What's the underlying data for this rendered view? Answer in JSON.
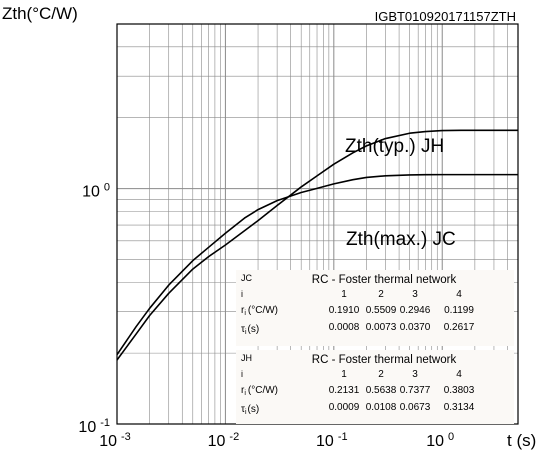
{
  "chart_data": {
    "type": "line",
    "title": "",
    "id_label": "IGBT010920171157ZTH",
    "ylabel": "Zth(°C/W)",
    "xlabel": "t (s)",
    "x_scale": "log",
    "y_scale": "log",
    "xlim": [
      0.001,
      5
    ],
    "ylim": [
      0.1,
      5
    ],
    "grid": true,
    "x_ticks": [
      {
        "base": "10",
        "exp": "-3"
      },
      {
        "base": "10",
        "exp": "-2"
      },
      {
        "base": "10",
        "exp": "-1"
      },
      {
        "base": "10",
        "exp": "0"
      }
    ],
    "y_ticks": [
      {
        "base": "10",
        "exp": "0"
      },
      {
        "base": "10",
        "exp": "-1"
      }
    ],
    "series": [
      {
        "name": "Zth(typ.) JH",
        "x": [
          0.001,
          0.0015,
          0.002,
          0.003,
          0.005,
          0.007,
          0.01,
          0.015,
          0.02,
          0.03,
          0.05,
          0.07,
          0.1,
          0.15,
          0.2,
          0.3,
          0.5,
          0.7,
          1,
          1.5,
          2,
          3,
          5
        ],
        "y": [
          0.187,
          0.241,
          0.289,
          0.359,
          0.455,
          0.514,
          0.576,
          0.662,
          0.731,
          0.847,
          1.016,
          1.132,
          1.269,
          1.419,
          1.518,
          1.631,
          1.718,
          1.747,
          1.763,
          1.767,
          1.768,
          1.768,
          1.768
        ]
      },
      {
        "name": "Zth(max.) JC",
        "x": [
          0.001,
          0.0015,
          0.002,
          0.003,
          0.005,
          0.007,
          0.01,
          0.015,
          0.02,
          0.03,
          0.05,
          0.07,
          0.1,
          0.15,
          0.2,
          0.3,
          0.5,
          0.7,
          1,
          1.5,
          2,
          3,
          5
        ],
        "y": [
          0.197,
          0.259,
          0.31,
          0.389,
          0.494,
          0.563,
          0.646,
          0.749,
          0.814,
          0.889,
          0.962,
          1.002,
          1.047,
          1.091,
          1.115,
          1.133,
          1.143,
          1.145,
          1.146,
          1.146,
          1.146,
          1.146,
          1.146
        ]
      }
    ],
    "annotations": [
      {
        "text": "Zth(typ.) JH",
        "series": 0
      },
      {
        "text": "Zth(max.) JC",
        "series": 1
      }
    ],
    "tables": [
      {
        "tag": "JC",
        "title": "RC - Foster thermal network",
        "index_label": "i",
        "indices": [
          "1",
          "2",
          "3",
          "4"
        ],
        "r_label": "r",
        "r_sub": "i",
        "r_unit": "(°C/W)",
        "r_values": [
          "0.1910",
          "0.5509",
          "0.2946",
          "0.1199"
        ],
        "tau_label": "τ",
        "tau_sub": "i",
        "tau_unit": "(s)",
        "tau_values": [
          "0.0008",
          "0.0073",
          "0.0370",
          "0.2617"
        ]
      },
      {
        "tag": "JH",
        "title": "RC - Foster thermal network",
        "index_label": "i",
        "indices": [
          "1",
          "2",
          "3",
          "4"
        ],
        "r_label": "r",
        "r_sub": "i",
        "r_unit": "(°C/W)",
        "r_values": [
          "0.2131",
          "0.5638",
          "0.7377",
          "0.3803"
        ],
        "tau_label": "τ",
        "tau_sub": "i",
        "tau_unit": "(s)",
        "tau_values": [
          "0.0009",
          "0.0108",
          "0.0673",
          "0.3134"
        ]
      }
    ],
    "colors": {
      "line": "#000000",
      "grid": "#8a8a8a",
      "table_bg": "#fbf9f6"
    }
  }
}
